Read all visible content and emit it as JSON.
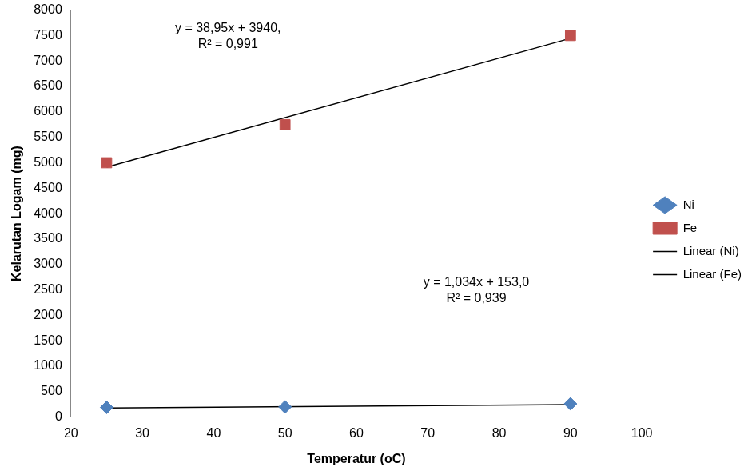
{
  "chart_data": {
    "type": "scatter",
    "x_label": "Temperatur (oC)",
    "y_label": "Kelarutan Logam (mg)",
    "xlim": [
      20,
      100
    ],
    "xticks": [
      20,
      30,
      40,
      50,
      60,
      70,
      80,
      90,
      100
    ],
    "ylim": [
      0,
      8000
    ],
    "yticks": [
      0,
      500,
      1000,
      1500,
      2000,
      2500,
      3000,
      3500,
      4000,
      4500,
      5000,
      5500,
      6000,
      6500,
      7000,
      7500,
      8000
    ],
    "grid": false,
    "legend": "right",
    "series": [
      {
        "name": "Ni",
        "color": "#4f81bd",
        "marker": "diamond",
        "x": [
          25,
          50,
          90
        ],
        "values": [
          190,
          200,
          260
        ]
      },
      {
        "name": "Fe",
        "color": "#c0504d",
        "marker": "square",
        "x": [
          25,
          50,
          90
        ],
        "values": [
          5000,
          5750,
          7500
        ]
      },
      {
        "name": "Linear (Ni)",
        "type": "line",
        "color": "#000000",
        "line_style": "solid",
        "x": [
          25,
          90
        ],
        "values": [
          179,
          246
        ]
      },
      {
        "name": "Linear (Fe)",
        "type": "line",
        "color": "#000000",
        "line_style": "solid",
        "x": [
          25,
          90
        ],
        "values": [
          4914,
          7446
        ]
      }
    ],
    "annotations": [
      [
        "y = 38,95x + 3940,",
        "R² = 0,991"
      ],
      [
        "y = 1,034x + 153,0",
        "R² = 0,939"
      ]
    ]
  }
}
